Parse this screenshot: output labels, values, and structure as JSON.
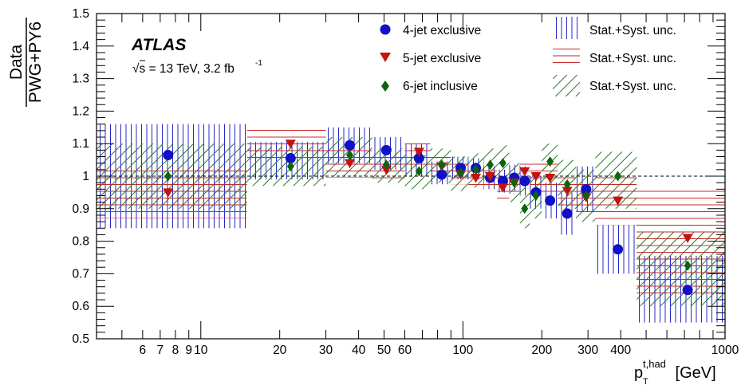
{
  "chart_data": {
    "type": "scatter",
    "experiment": "ATLAS",
    "energy_label": "√s = 13 TeV, 3.2 fb",
    "lumi_superscript": "-1",
    "ylabel_top": "Data",
    "ylabel_bottom": "PWG+PY6",
    "xlabel_main": "p",
    "xlabel_sub": "T",
    "xlabel_sup": "t,had",
    "xlabel_unit": " [GeV]",
    "xscale": "log",
    "xlim": [
      4,
      1000
    ],
    "ylim": [
      0.5,
      1.5
    ],
    "y_ticks": [
      "0.5",
      "0.6",
      "0.7",
      "0.8",
      "0.9",
      "1",
      "1.1",
      "1.2",
      "1.3",
      "1.4",
      "1.5"
    ],
    "x_tick_labels": [
      {
        "v": 6,
        "t": "6"
      },
      {
        "v": 7,
        "t": "7"
      },
      {
        "v": 8,
        "t": "8"
      },
      {
        "v": 9,
        "t": "9"
      },
      {
        "v": 10,
        "t": "10"
      },
      {
        "v": 20,
        "t": "20"
      },
      {
        "v": 30,
        "t": "30"
      },
      {
        "v": 40,
        "t": "40"
      },
      {
        "v": 50,
        "t": "50"
      },
      {
        "v": 60,
        "t": "60"
      },
      {
        "v": 100,
        "t": "100"
      },
      {
        "v": 200,
        "t": "200"
      },
      {
        "v": 300,
        "t": "300"
      },
      {
        "v": 400,
        "t": "400"
      },
      {
        "v": 1000,
        "t": "1000"
      }
    ],
    "reference_line": 1.0,
    "legend": {
      "placement": "top-right",
      "points": [
        "4-jet exclusive",
        "5-jet exclusive",
        "6-jet inclusive"
      ],
      "bands": [
        "Stat.+Syst. unc.",
        "Stat.+Syst. unc.",
        "Stat.+Syst. unc."
      ]
    },
    "colors": {
      "blue": "#1010c8",
      "red": "#c81010",
      "green": "#0c640c",
      "band_blue": "#2828c8",
      "band_red": "#c82828",
      "band_green": "#287828"
    },
    "series": [
      {
        "name": "4-jet exclusive",
        "marker": "circle",
        "points": [
          {
            "x": 7.5,
            "y": 1.065,
            "lo": 4,
            "hi": 15,
            "blo": 0.84,
            "bhi": 1.16
          },
          {
            "x": 22,
            "y": 1.055,
            "lo": 15,
            "hi": 30,
            "blo": 0.99,
            "bhi": 1.105
          },
          {
            "x": 37,
            "y": 1.095,
            "lo": 30,
            "hi": 45,
            "blo": 1.04,
            "bhi": 1.15
          },
          {
            "x": 51,
            "y": 1.08,
            "lo": 45,
            "hi": 60,
            "blo": 1.02,
            "bhi": 1.12
          },
          {
            "x": 68,
            "y": 1.055,
            "lo": 60,
            "hi": 75,
            "blo": 1.0,
            "bhi": 1.1
          },
          {
            "x": 83,
            "y": 1.005,
            "lo": 75,
            "hi": 90,
            "blo": 0.975,
            "bhi": 1.045
          },
          {
            "x": 98,
            "y": 1.025,
            "lo": 90,
            "hi": 105,
            "blo": 0.99,
            "bhi": 1.06
          },
          {
            "x": 112,
            "y": 1.025,
            "lo": 105,
            "hi": 120,
            "blo": 0.99,
            "bhi": 1.055
          },
          {
            "x": 127,
            "y": 0.995,
            "lo": 120,
            "hi": 135,
            "blo": 0.96,
            "bhi": 1.03
          },
          {
            "x": 142,
            "y": 0.985,
            "lo": 135,
            "hi": 150,
            "blo": 0.95,
            "bhi": 1.02
          },
          {
            "x": 157,
            "y": 0.995,
            "lo": 150,
            "hi": 165,
            "blo": 0.955,
            "bhi": 1.035
          },
          {
            "x": 172,
            "y": 0.985,
            "lo": 165,
            "hi": 180,
            "blo": 0.94,
            "bhi": 1.03
          },
          {
            "x": 190,
            "y": 0.95,
            "lo": 180,
            "hi": 200,
            "blo": 0.9,
            "bhi": 1.0
          },
          {
            "x": 215,
            "y": 0.925,
            "lo": 200,
            "hi": 230,
            "blo": 0.87,
            "bhi": 0.98
          },
          {
            "x": 250,
            "y": 0.885,
            "lo": 230,
            "hi": 270,
            "blo": 0.82,
            "bhi": 0.95
          },
          {
            "x": 295,
            "y": 0.96,
            "lo": 270,
            "hi": 320,
            "blo": 0.89,
            "bhi": 1.03
          },
          {
            "x": 390,
            "y": 0.775,
            "lo": 320,
            "hi": 460,
            "blo": 0.7,
            "bhi": 0.85
          },
          {
            "x": 720,
            "y": 0.65,
            "lo": 460,
            "hi": 1000,
            "blo": 0.55,
            "bhi": 0.755
          }
        ]
      },
      {
        "name": "5-jet exclusive",
        "marker": "triangle-down",
        "points": [
          {
            "x": 7.5,
            "y": 0.95,
            "lo": 4,
            "hi": 15,
            "blo": 0.87,
            "bhi": 1.02
          },
          {
            "x": 22,
            "y": 1.1,
            "lo": 15,
            "hi": 30,
            "blo": 1.04,
            "bhi": 1.145
          },
          {
            "x": 37,
            "y": 1.04,
            "lo": 30,
            "hi": 45,
            "blo": 0.995,
            "bhi": 1.09
          },
          {
            "x": 51,
            "y": 1.02,
            "lo": 45,
            "hi": 60,
            "blo": 0.98,
            "bhi": 1.06
          },
          {
            "x": 68,
            "y": 1.075,
            "lo": 60,
            "hi": 75,
            "blo": 1.03,
            "bhi": 1.11
          },
          {
            "x": 83,
            "y": 1.03,
            "lo": 75,
            "hi": 90,
            "blo": 1.0,
            "bhi": 1.065
          },
          {
            "x": 98,
            "y": 1.005,
            "lo": 90,
            "hi": 105,
            "blo": 0.975,
            "bhi": 1.04
          },
          {
            "x": 112,
            "y": 0.995,
            "lo": 105,
            "hi": 120,
            "blo": 0.97,
            "bhi": 1.025
          },
          {
            "x": 127,
            "y": 1.0,
            "lo": 120,
            "hi": 135,
            "blo": 0.97,
            "bhi": 1.03
          },
          {
            "x": 142,
            "y": 0.965,
            "lo": 135,
            "hi": 150,
            "blo": 0.93,
            "bhi": 1.0
          },
          {
            "x": 157,
            "y": 0.98,
            "lo": 150,
            "hi": 165,
            "blo": 0.945,
            "bhi": 1.015
          },
          {
            "x": 172,
            "y": 1.015,
            "lo": 165,
            "hi": 180,
            "blo": 0.975,
            "bhi": 1.05
          },
          {
            "x": 190,
            "y": 1.0,
            "lo": 180,
            "hi": 200,
            "blo": 0.955,
            "bhi": 1.04
          },
          {
            "x": 215,
            "y": 0.995,
            "lo": 200,
            "hi": 230,
            "blo": 0.95,
            "bhi": 1.04
          },
          {
            "x": 250,
            "y": 0.955,
            "lo": 230,
            "hi": 270,
            "blo": 0.9,
            "bhi": 1.01
          },
          {
            "x": 295,
            "y": 0.935,
            "lo": 270,
            "hi": 320,
            "blo": 0.88,
            "bhi": 0.99
          },
          {
            "x": 390,
            "y": 0.925,
            "lo": 320,
            "hi": 460,
            "blo": 0.85,
            "bhi": 1.0
          },
          {
            "x": 720,
            "y": 0.81,
            "lo": 460,
            "hi": 1000,
            "blo": 0.63,
            "bhi": 0.955
          }
        ]
      },
      {
        "name": "6-jet inclusive",
        "marker": "diamond",
        "points": [
          {
            "x": 7.5,
            "y": 1.0,
            "lo": 4,
            "hi": 15,
            "blo": 0.9,
            "bhi": 1.1
          },
          {
            "x": 22,
            "y": 1.03,
            "lo": 15,
            "hi": 30,
            "blo": 0.97,
            "bhi": 1.09
          },
          {
            "x": 37,
            "y": 1.065,
            "lo": 30,
            "hi": 45,
            "blo": 1.0,
            "bhi": 1.12
          },
          {
            "x": 51,
            "y": 1.035,
            "lo": 45,
            "hi": 60,
            "blo": 0.98,
            "bhi": 1.085
          },
          {
            "x": 68,
            "y": 1.015,
            "lo": 60,
            "hi": 75,
            "blo": 0.96,
            "bhi": 1.065
          },
          {
            "x": 83,
            "y": 1.035,
            "lo": 75,
            "hi": 90,
            "blo": 0.98,
            "bhi": 1.085
          },
          {
            "x": 98,
            "y": 1.01,
            "lo": 90,
            "hi": 105,
            "blo": 0.955,
            "bhi": 1.06
          },
          {
            "x": 112,
            "y": 1.02,
            "lo": 105,
            "hi": 120,
            "blo": 0.965,
            "bhi": 1.07
          },
          {
            "x": 127,
            "y": 1.035,
            "lo": 120,
            "hi": 135,
            "blo": 0.985,
            "bhi": 1.085
          },
          {
            "x": 142,
            "y": 1.04,
            "lo": 135,
            "hi": 150,
            "blo": 0.985,
            "bhi": 1.095
          },
          {
            "x": 157,
            "y": 0.98,
            "lo": 150,
            "hi": 165,
            "blo": 0.92,
            "bhi": 1.04
          },
          {
            "x": 172,
            "y": 0.9,
            "lo": 165,
            "hi": 180,
            "blo": 0.84,
            "bhi": 0.965
          },
          {
            "x": 190,
            "y": 0.94,
            "lo": 180,
            "hi": 200,
            "blo": 0.87,
            "bhi": 1.0
          },
          {
            "x": 215,
            "y": 1.045,
            "lo": 200,
            "hi": 230,
            "blo": 0.975,
            "bhi": 1.1
          },
          {
            "x": 250,
            "y": 0.975,
            "lo": 230,
            "hi": 270,
            "blo": 0.9,
            "bhi": 1.05
          },
          {
            "x": 295,
            "y": 0.94,
            "lo": 270,
            "hi": 320,
            "blo": 0.86,
            "bhi": 1.02
          },
          {
            "x": 390,
            "y": 1.0,
            "lo": 320,
            "hi": 460,
            "blo": 0.9,
            "bhi": 1.075
          },
          {
            "x": 720,
            "y": 0.725,
            "lo": 460,
            "hi": 1000,
            "blo": 0.6,
            "bhi": 0.83
          }
        ]
      }
    ]
  }
}
